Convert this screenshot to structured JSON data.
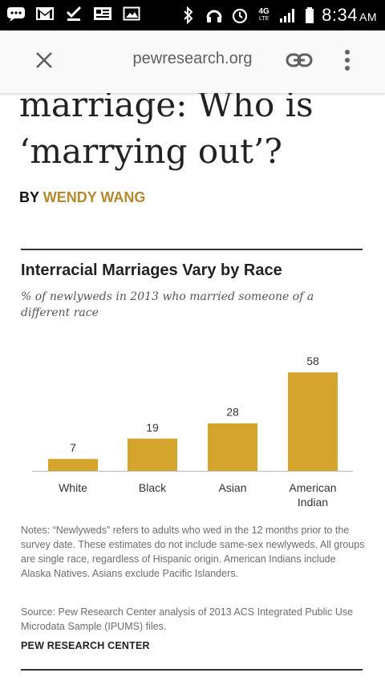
{
  "status_bar": {
    "time": "8:34",
    "ampm": "AM",
    "network": "4G",
    "network_sub": "LTE"
  },
  "toolbar": {
    "url": "pewresearch.org"
  },
  "article": {
    "headline": "marriage: Who is ‘marrying out’?",
    "byline_prefix": "BY",
    "author": "WENDY WANG"
  },
  "chart_data": {
    "type": "bar",
    "title": "Interracial Marriages Vary by Race",
    "subtitle": "% of newlyweds in 2013 who married someone of a different race",
    "categories": [
      "White",
      "Black",
      "Asian",
      "American Indian"
    ],
    "category_lines": [
      [
        "White"
      ],
      [
        "Black"
      ],
      [
        "Asian"
      ],
      [
        "American",
        "Indian"
      ]
    ],
    "values": [
      7,
      19,
      28,
      58
    ],
    "ylim": [
      0,
      60
    ],
    "bar_color": "#d4a42c",
    "grid": false
  },
  "notes": "Notes: “Newlyweds” refers to adults who wed in the 12 months prior to the survey date. These estimates do not include same-sex newlyweds. All groups are single race, regardless of Hispanic origin. American Indians include Alaska Natives. Asians exclude Pacific Islanders.",
  "source": "Source: Pew Research Center analysis of 2013 ACS Integrated Public Use Microdata Sample (IPUMS) files.",
  "org": "PEW RESEARCH CENTER"
}
